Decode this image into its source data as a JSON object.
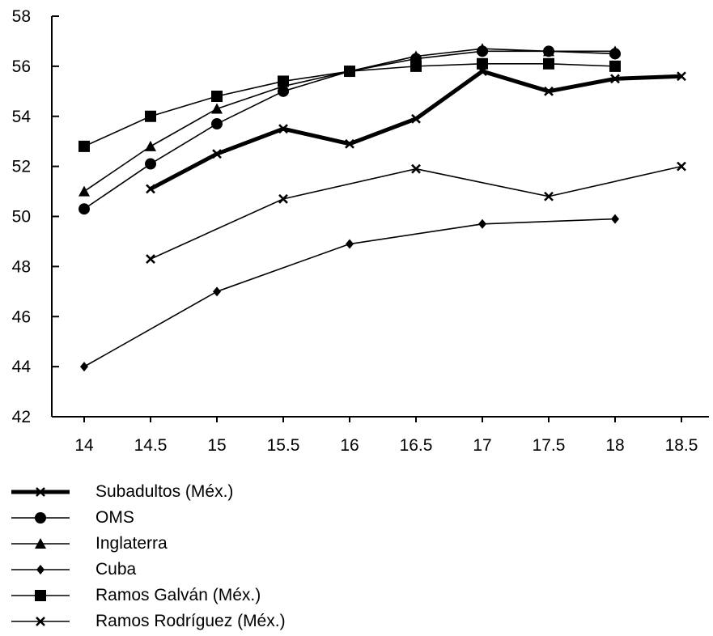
{
  "chart_data": {
    "type": "line",
    "title": "",
    "xlabel": "",
    "ylabel": "",
    "x": [
      14,
      14.5,
      15,
      15.5,
      16,
      16.5,
      17,
      17.5,
      18,
      18.5
    ],
    "x_tick_labels": [
      "14",
      "14.5",
      "15",
      "15.5",
      "16",
      "16.5",
      "17",
      "17.5",
      "18",
      "18.5"
    ],
    "y_ticks": [
      42,
      44,
      46,
      48,
      50,
      52,
      54,
      56,
      58
    ],
    "y_tick_labels": [
      "42",
      "44",
      "46",
      "48",
      "50",
      "52",
      "54",
      "56",
      "58"
    ],
    "ylim": [
      42,
      58
    ],
    "grid": false,
    "legend_position": "bottom-left",
    "series": [
      {
        "name": "Subadultos (Méx.)",
        "marker": "x",
        "line_style": "thick",
        "values": [
          null,
          51.1,
          52.5,
          53.5,
          52.9,
          53.9,
          55.8,
          55.0,
          55.5,
          55.6
        ]
      },
      {
        "name": "OMS",
        "marker": "circle",
        "line_style": "thin",
        "values": [
          50.3,
          52.1,
          53.7,
          55.0,
          55.8,
          56.3,
          56.6,
          56.6,
          56.5,
          null
        ]
      },
      {
        "name": "Inglaterra",
        "marker": "triangle",
        "line_style": "thin",
        "values": [
          51.0,
          52.8,
          54.3,
          55.2,
          55.8,
          56.4,
          56.7,
          56.6,
          56.6,
          null
        ]
      },
      {
        "name": "Cuba",
        "marker": "diamond",
        "line_style": "thin",
        "values": [
          44.0,
          null,
          47.0,
          null,
          48.9,
          null,
          49.7,
          null,
          49.9,
          null
        ]
      },
      {
        "name": "Ramos Galván (Méx.)",
        "marker": "square",
        "line_style": "thin",
        "values": [
          52.8,
          54.0,
          54.8,
          55.4,
          55.8,
          56.0,
          56.1,
          56.1,
          56.0,
          null
        ]
      },
      {
        "name": "Ramos Rodríguez (Méx.)",
        "marker": "x",
        "line_style": "thin",
        "values": [
          null,
          48.3,
          null,
          50.7,
          null,
          51.9,
          null,
          50.8,
          null,
          52.0
        ]
      }
    ]
  }
}
